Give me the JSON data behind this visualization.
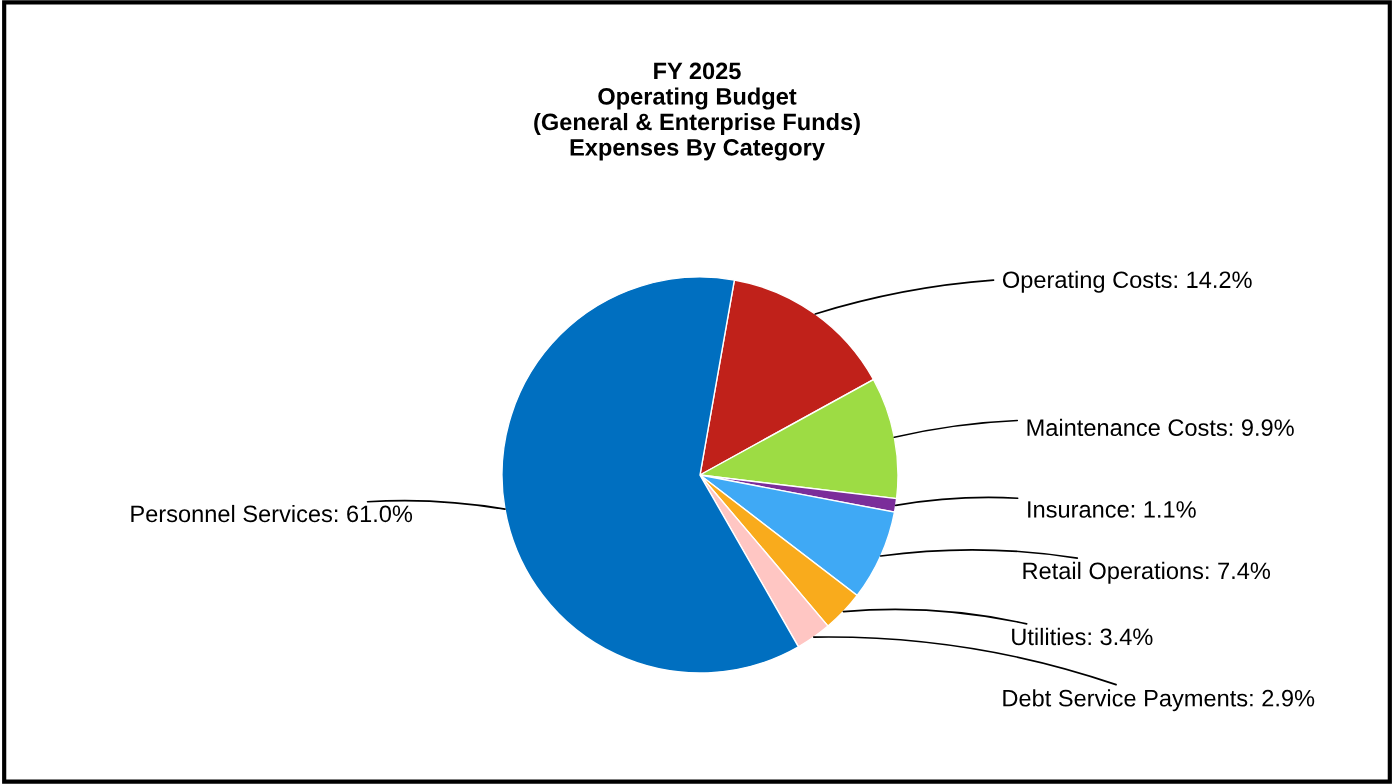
{
  "chart_data": {
    "type": "pie",
    "title": "FY 2025\nOperating Budget\n(General & Enterprise Funds)\nExpenses By Category",
    "categories": [
      "Operating Costs",
      "Maintenance Costs",
      "Insurance",
      "Retail Operations",
      "Utilities",
      "Debt Service Payments",
      "Personnel Services"
    ],
    "values": [
      14.2,
      9.9,
      1.1,
      7.4,
      3.4,
      2.9,
      61.0
    ],
    "value_labels": [
      "14.2%",
      "9.9%",
      "1.1%",
      "7.4%",
      "3.4%",
      "2.9%",
      "61.0%"
    ],
    "colors": [
      "#c0211a",
      "#9ddc44",
      "#7b2d9a",
      "#3fa9f5",
      "#f9ab1c",
      "#ffc6c3",
      "#006fc0"
    ],
    "legend": false
  }
}
